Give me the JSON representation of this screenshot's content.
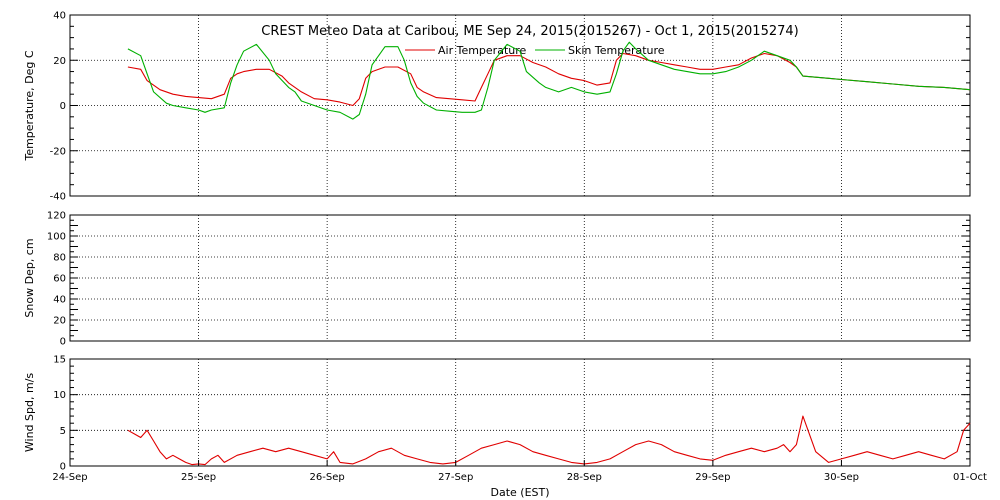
{
  "chart_data": [
    {
      "type": "line",
      "title": "CREST Meteo Data at Caribou, ME   Sep 24, 2015(2015267) - Oct  1, 2015(2015274)",
      "ylabel": "Temperature, Deg C",
      "xlabel": "",
      "xlim_days": [
        0,
        7
      ],
      "ylim": [
        -40,
        40
      ],
      "yticks": [
        "-40",
        "-20",
        "0",
        "20",
        "40"
      ],
      "grid": true,
      "legend_position": "top",
      "series": [
        {
          "name": "Air Temperature",
          "color": "#e00000",
          "x": [
            0.45,
            0.55,
            0.6,
            0.7,
            0.8,
            0.9,
            1.0,
            1.1,
            1.2,
            1.25,
            1.3,
            1.35,
            1.45,
            1.55,
            1.65,
            1.7,
            1.75,
            1.8,
            1.9,
            2.0,
            2.1,
            2.2,
            2.25,
            2.3,
            2.35,
            2.45,
            2.55,
            2.65,
            2.7,
            2.75,
            2.85,
            2.95,
            3.05,
            3.15,
            3.2,
            3.25,
            3.3,
            3.4,
            3.5,
            3.6,
            3.7,
            3.8,
            3.9,
            4.0,
            4.1,
            4.2,
            4.25,
            4.3,
            4.4,
            4.5,
            4.6,
            4.7,
            4.8,
            4.9,
            5.0,
            5.1,
            5.2,
            5.3,
            5.4,
            5.5,
            5.6,
            5.65,
            5.7,
            5.8,
            5.9,
            6.0,
            6.2,
            6.4,
            6.6,
            6.8,
            7.0
          ],
          "y": [
            17,
            16,
            11,
            7,
            5,
            4,
            3.5,
            3,
            5,
            12,
            14,
            15,
            16,
            16,
            13,
            10,
            8,
            6,
            3,
            2.5,
            1.5,
            0,
            3,
            12,
            15,
            17,
            17,
            14,
            8,
            6,
            3.5,
            3,
            2.5,
            2,
            8,
            14,
            20,
            22,
            22,
            19,
            17,
            14,
            12,
            11,
            9,
            10,
            20,
            23,
            22,
            20,
            19,
            18,
            17,
            16,
            16,
            17,
            18,
            21,
            23,
            22,
            19,
            17,
            13,
            12.5,
            12,
            11.5,
            10.5,
            9.5,
            8.5,
            8,
            7
          ]
        },
        {
          "name": "Skin Temperature",
          "color": "#00b000",
          "x": [
            0.45,
            0.55,
            0.6,
            0.65,
            0.75,
            0.8,
            0.9,
            1.0,
            1.05,
            1.1,
            1.2,
            1.25,
            1.3,
            1.35,
            1.45,
            1.55,
            1.6,
            1.7,
            1.75,
            1.8,
            1.9,
            2.0,
            2.1,
            2.2,
            2.25,
            2.3,
            2.35,
            2.45,
            2.55,
            2.6,
            2.65,
            2.7,
            2.75,
            2.85,
            2.95,
            3.05,
            3.15,
            3.2,
            3.25,
            3.3,
            3.4,
            3.5,
            3.55,
            3.65,
            3.7,
            3.8,
            3.9,
            4.0,
            4.1,
            4.2,
            4.25,
            4.3,
            4.35,
            4.4,
            4.5,
            4.6,
            4.7,
            4.8,
            4.9,
            5.0,
            5.1,
            5.2,
            5.3,
            5.35,
            5.4,
            5.5,
            5.6,
            5.65,
            5.7,
            5.8,
            5.9,
            6.0,
            6.2,
            6.4,
            6.6,
            6.8,
            7.0
          ],
          "y": [
            25,
            22,
            14,
            6,
            1,
            0,
            -1,
            -2,
            -3,
            -2,
            -1,
            10,
            18,
            24,
            27,
            20,
            14,
            8,
            6,
            2,
            0,
            -2,
            -3,
            -6,
            -4,
            5,
            18,
            26,
            26,
            20,
            10,
            4,
            1,
            -2,
            -2.5,
            -3,
            -3,
            -2,
            8,
            20,
            27,
            24,
            15,
            10,
            8,
            6,
            8,
            6,
            5,
            6,
            14,
            24,
            28,
            25,
            20,
            18,
            16,
            15,
            14,
            14,
            15,
            17,
            20,
            22,
            24,
            22,
            20,
            17,
            13,
            12.5,
            12,
            11.5,
            10.5,
            9.5,
            8.5,
            8,
            7
          ]
        }
      ]
    },
    {
      "type": "line",
      "title": "",
      "ylabel": "Snow Dep, cm",
      "xlim_days": [
        0,
        7
      ],
      "ylim": [
        0,
        120
      ],
      "yticks": [
        "0",
        "20",
        "40",
        "60",
        "80",
        "100",
        "120"
      ],
      "grid": true,
      "series": []
    },
    {
      "type": "line",
      "title": "",
      "ylabel": "Wind Spd, m/s",
      "xlabel": "Date (EST)",
      "xlim_days": [
        0,
        7
      ],
      "ylim": [
        0,
        15
      ],
      "yticks": [
        "0",
        "5",
        "10",
        "15"
      ],
      "xticks": [
        "24-Sep",
        "25-Sep",
        "26-Sep",
        "27-Sep",
        "28-Sep",
        "29-Sep",
        "30-Sep",
        "01-Oct"
      ],
      "grid": true,
      "series": [
        {
          "name": "",
          "color": "#e00000",
          "x": [
            0.45,
            0.5,
            0.55,
            0.6,
            0.65,
            0.7,
            0.75,
            0.8,
            0.85,
            0.9,
            0.95,
            1.0,
            1.05,
            1.1,
            1.15,
            1.2,
            1.3,
            1.4,
            1.5,
            1.6,
            1.7,
            1.8,
            1.9,
            2.0,
            2.05,
            2.1,
            2.2,
            2.3,
            2.4,
            2.5,
            2.6,
            2.7,
            2.8,
            2.9,
            3.0,
            3.1,
            3.2,
            3.3,
            3.4,
            3.5,
            3.6,
            3.7,
            3.8,
            3.9,
            4.0,
            4.1,
            4.2,
            4.3,
            4.4,
            4.5,
            4.6,
            4.7,
            4.8,
            4.9,
            5.0,
            5.1,
            5.2,
            5.3,
            5.4,
            5.5,
            5.55,
            5.6,
            5.65,
            5.7,
            5.8,
            5.9,
            6.0,
            6.1,
            6.2,
            6.3,
            6.4,
            6.5,
            6.6,
            6.7,
            6.8,
            6.9,
            6.95,
            7.0
          ],
          "y": [
            5,
            4.5,
            4,
            5,
            3.5,
            2,
            1,
            1.5,
            1,
            0.5,
            0.2,
            0.3,
            0.2,
            1,
            1.5,
            0.5,
            1.5,
            2,
            2.5,
            2,
            2.5,
            2,
            1.5,
            1,
            2,
            0.5,
            0.3,
            1,
            2,
            2.5,
            1.5,
            1,
            0.5,
            0.3,
            0.5,
            1.5,
            2.5,
            3,
            3.5,
            3,
            2,
            1.5,
            1,
            0.5,
            0.3,
            0.5,
            1,
            2,
            3,
            3.5,
            3,
            2,
            1.5,
            1,
            0.8,
            1.5,
            2,
            2.5,
            2,
            2.5,
            3,
            2,
            3,
            7,
            2,
            0.5,
            1,
            1.5,
            2,
            1.5,
            1,
            1.5,
            2,
            1.5,
            1,
            2,
            5,
            6
          ]
        }
      ]
    }
  ]
}
